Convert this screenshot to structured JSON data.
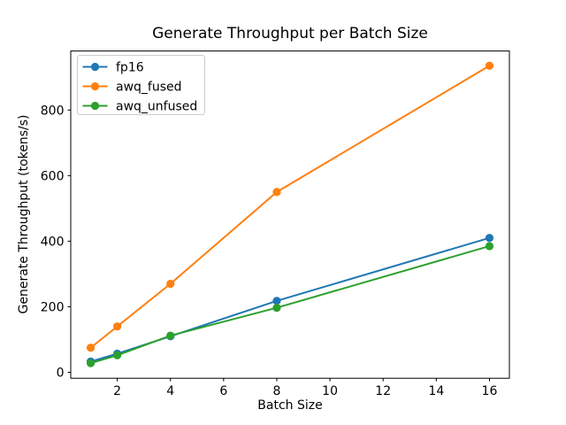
{
  "chart_data": {
    "type": "line",
    "title": "Generate Throughput per Batch Size",
    "xlabel": "Batch Size",
    "ylabel": "Generate Throughput (tokens/s)",
    "x": [
      1,
      2,
      4,
      8,
      16
    ],
    "series": [
      {
        "name": "fp16",
        "color": "#1f77b4",
        "values": [
          33,
          57,
          110,
          218,
          410
        ]
      },
      {
        "name": "awq_fused",
        "color": "#ff7f0e",
        "values": [
          75,
          140,
          270,
          550,
          935
        ]
      },
      {
        "name": "awq_unfused",
        "color": "#2ca02c",
        "values": [
          28,
          52,
          112,
          197,
          385
        ]
      }
    ],
    "xlim": [
      0.25,
      16.75
    ],
    "ylim": [
      -18,
      980
    ],
    "xticks": [
      2,
      4,
      6,
      8,
      10,
      12,
      14,
      16
    ],
    "yticks": [
      0,
      200,
      400,
      600,
      800
    ],
    "legend_position": "upper left",
    "legend_border_color": "#cccccc",
    "axis_color": "#000000",
    "background_color": "#ffffff",
    "grid": false,
    "marker": "o"
  }
}
